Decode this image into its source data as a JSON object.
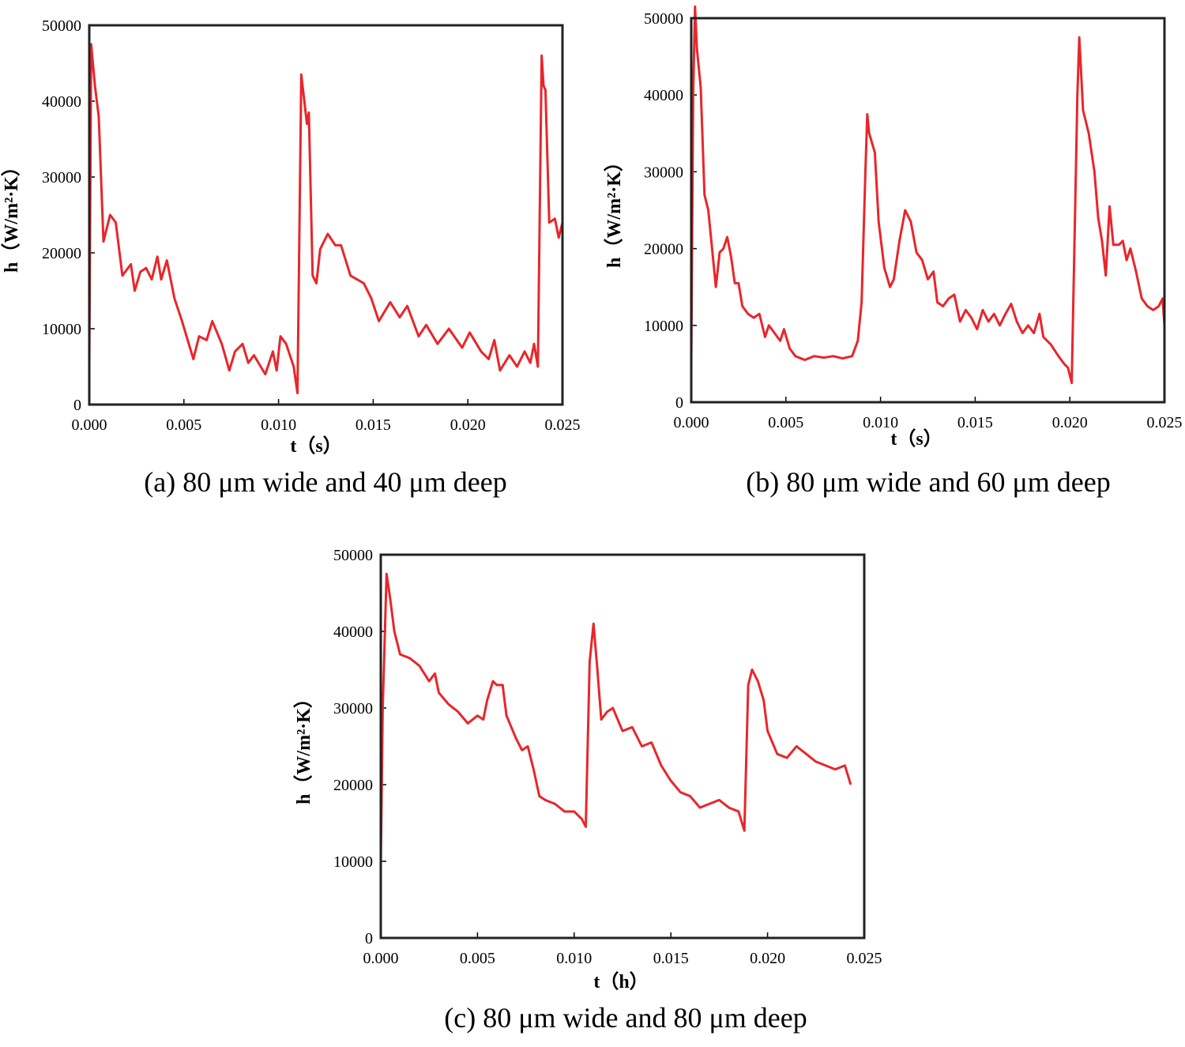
{
  "chart_data": [
    {
      "type": "line",
      "caption": "(a) 80 μm wide and 40 μm deep",
      "x_label": "t（s）",
      "y_label": "h（W/m²·K）",
      "xlim": [
        0,
        0.025
      ],
      "ylim": [
        0,
        50000
      ],
      "xticks": [
        {
          "value": 0,
          "label": "0.000"
        },
        {
          "value": 0.005,
          "label": "0.005"
        },
        {
          "value": 0.01,
          "label": "0.010"
        },
        {
          "value": 0.015,
          "label": "0.015"
        },
        {
          "value": 0.02,
          "label": "0.020"
        },
        {
          "value": 0.025,
          "label": "0.025"
        }
      ],
      "yticks": [
        0,
        10000,
        20000,
        30000,
        40000,
        50000
      ],
      "series": [
        {
          "color": "#e8262b",
          "x": [
            0,
            0.0001,
            0.0003,
            0.0005,
            0.00075,
            0.0011,
            0.0014,
            0.00175,
            0.0022,
            0.0024,
            0.0027,
            0.003,
            0.0033,
            0.0036,
            0.0038,
            0.0041,
            0.0045,
            0.0049,
            0.0055,
            0.0058,
            0.0062,
            0.0065,
            0.007,
            0.0074,
            0.0077,
            0.0081,
            0.0084,
            0.0087,
            0.0093,
            0.0097,
            0.0099,
            0.0101,
            0.0104,
            0.0108,
            0.011,
            0.0112,
            0.0115,
            0.0116,
            0.0118,
            0.012,
            0.0122,
            0.0126,
            0.013,
            0.0133,
            0.0138,
            0.0145,
            0.0149,
            0.0153,
            0.0159,
            0.0164,
            0.0168,
            0.0174,
            0.0178,
            0.0184,
            0.019,
            0.0197,
            0.0201,
            0.0207,
            0.0211,
            0.0214,
            0.0217,
            0.0222,
            0.0226,
            0.023,
            0.0233,
            0.0235,
            0.0237,
            0.0239,
            0.024,
            0.0241,
            0.0243,
            0.0246,
            0.0248,
            0.025
          ],
          "values": [
            5000,
            47500,
            42000,
            38000,
            21500,
            25000,
            24000,
            17000,
            18500,
            15000,
            17500,
            18000,
            16500,
            19500,
            16500,
            19000,
            14000,
            11000,
            6000,
            9000,
            8500,
            11000,
            8000,
            4500,
            7000,
            8000,
            5500,
            6500,
            4000,
            7000,
            4500,
            9000,
            8000,
            5000,
            1500,
            43500,
            37000,
            38500,
            17000,
            16000,
            20500,
            22500,
            21000,
            21000,
            17000,
            16000,
            14000,
            11000,
            13500,
            11500,
            13000,
            9000,
            10500,
            8000,
            10000,
            7500,
            9500,
            7000,
            6000,
            8500,
            4500,
            6500,
            5000,
            7000,
            5500,
            8000,
            5000,
            46000,
            42000,
            41500,
            24000,
            24500,
            22000,
            24000
          ]
        }
      ]
    },
    {
      "type": "line",
      "caption": "(b) 80 μm wide and 60 μm deep",
      "x_label": "t（s）",
      "y_label": "h（W/m²·K）",
      "xlim": [
        0,
        0.025
      ],
      "ylim": [
        0,
        50000
      ],
      "xticks": [
        {
          "value": 0,
          "label": "0.000"
        },
        {
          "value": 0.005,
          "label": "0.005"
        },
        {
          "value": 0.01,
          "label": "0.010"
        },
        {
          "value": 0.015,
          "label": "0.015"
        },
        {
          "value": 0.02,
          "label": "0.020"
        },
        {
          "value": 0.025,
          "label": "0.025"
        }
      ],
      "yticks": [
        0,
        10000,
        20000,
        30000,
        40000,
        50000
      ],
      "series": [
        {
          "color": "#e8262b",
          "x": [
            0,
            0.0001,
            0.0002,
            0.0003,
            0.0005,
            0.0007,
            0.0009,
            0.0011,
            0.0013,
            0.0015,
            0.0017,
            0.0019,
            0.0021,
            0.0023,
            0.0025,
            0.0027,
            0.003,
            0.0033,
            0.0036,
            0.0039,
            0.0041,
            0.0044,
            0.0047,
            0.0049,
            0.0052,
            0.0055,
            0.006,
            0.0065,
            0.007,
            0.0075,
            0.008,
            0.0085,
            0.0088,
            0.009,
            0.0092,
            0.0093,
            0.0094,
            0.0097,
            0.0099,
            0.0102,
            0.0105,
            0.0107,
            0.011,
            0.0113,
            0.0116,
            0.0119,
            0.0122,
            0.0125,
            0.0128,
            0.013,
            0.0133,
            0.0136,
            0.0139,
            0.0142,
            0.0145,
            0.0148,
            0.0151,
            0.0154,
            0.0157,
            0.016,
            0.0163,
            0.0166,
            0.0169,
            0.0172,
            0.0175,
            0.0178,
            0.0181,
            0.0184,
            0.0186,
            0.019,
            0.0194,
            0.0197,
            0.0199,
            0.0201,
            0.0204,
            0.0205,
            0.0207,
            0.021,
            0.0213,
            0.0215,
            0.0217,
            0.0219,
            0.0221,
            0.0223,
            0.0226,
            0.0228,
            0.023,
            0.0232,
            0.0235,
            0.0238,
            0.0241,
            0.0244,
            0.0247,
            0.0249,
            0.025
          ],
          "values": [
            5000,
            40000,
            51500,
            46000,
            41000,
            27000,
            25000,
            20000,
            15000,
            19500,
            20000,
            21500,
            19000,
            15500,
            15500,
            12500,
            11500,
            11000,
            11500,
            8500,
            10000,
            9000,
            8000,
            9500,
            7000,
            6000,
            5500,
            6000,
            5800,
            6000,
            5700,
            6000,
            8000,
            13000,
            30000,
            37500,
            35000,
            32500,
            23500,
            17500,
            15000,
            16000,
            21000,
            25000,
            23500,
            19500,
            18500,
            16000,
            17000,
            13000,
            12500,
            13500,
            14000,
            10500,
            12000,
            11000,
            9500,
            12000,
            10500,
            11500,
            10000,
            11500,
            12800,
            10500,
            9000,
            10000,
            9000,
            11500,
            8500,
            7500,
            6000,
            5000,
            4500,
            2500,
            40000,
            47500,
            38000,
            35000,
            30000,
            24000,
            21000,
            16500,
            25500,
            20500,
            20500,
            21000,
            18500,
            20000,
            17000,
            13500,
            12500,
            12000,
            12500,
            13500,
            10000
          ]
        }
      ]
    },
    {
      "type": "line",
      "caption": "(c) 80 μm wide and 80 μm deep",
      "x_label": "t（h）",
      "y_label": "h（W/m²·K）",
      "xlim": [
        0,
        0.025
      ],
      "ylim": [
        0,
        50000
      ],
      "xticks": [
        {
          "value": 0,
          "label": "0.000"
        },
        {
          "value": 0.005,
          "label": "0.005"
        },
        {
          "value": 0.01,
          "label": "0.010"
        },
        {
          "value": 0.015,
          "label": "0.015"
        },
        {
          "value": 0.02,
          "label": "0.020"
        },
        {
          "value": 0.025,
          "label": "0.025"
        }
      ],
      "yticks": [
        0,
        10000,
        20000,
        30000,
        40000,
        50000
      ],
      "series": [
        {
          "color": "#e8262b",
          "x": [
            0,
            0.0001,
            0.0003,
            0.0005,
            0.0007,
            0.001,
            0.0015,
            0.002,
            0.0025,
            0.0028,
            0.003,
            0.0035,
            0.004,
            0.0045,
            0.005,
            0.0053,
            0.0055,
            0.0058,
            0.006,
            0.0063,
            0.0065,
            0.007,
            0.0073,
            0.0076,
            0.0079,
            0.0082,
            0.0085,
            0.009,
            0.0095,
            0.01,
            0.0104,
            0.0106,
            0.0108,
            0.011,
            0.0112,
            0.0114,
            0.0117,
            0.012,
            0.0125,
            0.013,
            0.0135,
            0.014,
            0.0145,
            0.015,
            0.0155,
            0.016,
            0.0165,
            0.017,
            0.0175,
            0.018,
            0.0185,
            0.0188,
            0.019,
            0.0192,
            0.0195,
            0.0198,
            0.02,
            0.0205,
            0.021,
            0.0215,
            0.022,
            0.0225,
            0.023,
            0.0235,
            0.024,
            0.0243
          ],
          "values": [
            9500,
            30000,
            47500,
            44000,
            40000,
            37000,
            36500,
            35500,
            33500,
            34500,
            32000,
            30500,
            29500,
            28000,
            29000,
            28500,
            31000,
            33500,
            33000,
            33000,
            29000,
            26000,
            24500,
            25000,
            22000,
            18500,
            18000,
            17500,
            16500,
            16500,
            15500,
            14500,
            36000,
            41000,
            35000,
            28500,
            29500,
            30000,
            27000,
            27500,
            25000,
            25500,
            22500,
            20500,
            19000,
            18500,
            17000,
            17500,
            18000,
            17000,
            16500,
            14000,
            33000,
            35000,
            33500,
            31000,
            27000,
            24000,
            23500,
            25000,
            24000,
            23000,
            22500,
            22000,
            22500,
            20000
          ]
        }
      ]
    }
  ]
}
